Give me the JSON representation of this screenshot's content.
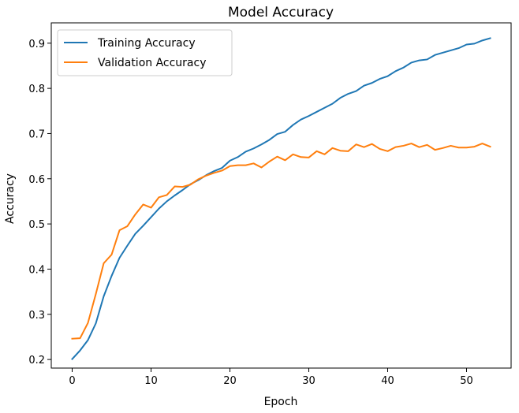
{
  "chart_data": {
    "type": "line",
    "title": "Model Accuracy",
    "xlabel": "Epoch",
    "ylabel": "Accuracy",
    "xlim": [
      -2.65,
      55.65
    ],
    "ylim": [
      0.181,
      0.945
    ],
    "xticks": [
      0,
      10,
      20,
      30,
      40,
      50
    ],
    "yticks": [
      0.2,
      0.3,
      0.4,
      0.5,
      0.6,
      0.7,
      0.8,
      0.9
    ],
    "grid": false,
    "legend_position": "top-left",
    "x": [
      0,
      1,
      2,
      3,
      4,
      5,
      6,
      7,
      8,
      9,
      10,
      11,
      12,
      13,
      14,
      15,
      16,
      17,
      18,
      19,
      20,
      21,
      22,
      23,
      24,
      25,
      26,
      27,
      28,
      29,
      30,
      31,
      32,
      33,
      34,
      35,
      36,
      37,
      38,
      39,
      40,
      41,
      42,
      43,
      44,
      45,
      46,
      47,
      48,
      49,
      50,
      51,
      52,
      53
    ],
    "series": [
      {
        "name": "Training Accuracy",
        "color": "#1f77b4",
        "values": [
          0.201,
          0.22,
          0.243,
          0.28,
          0.34,
          0.385,
          0.425,
          0.452,
          0.478,
          0.496,
          0.515,
          0.534,
          0.55,
          0.563,
          0.575,
          0.588,
          0.597,
          0.608,
          0.617,
          0.624,
          0.64,
          0.648,
          0.66,
          0.667,
          0.676,
          0.686,
          0.699,
          0.704,
          0.719,
          0.731,
          0.739,
          0.748,
          0.757,
          0.766,
          0.779,
          0.788,
          0.794,
          0.806,
          0.812,
          0.821,
          0.827,
          0.838,
          0.846,
          0.857,
          0.862,
          0.864,
          0.874,
          0.879,
          0.884,
          0.889,
          0.897,
          0.899,
          0.906,
          0.911
        ]
      },
      {
        "name": "Validation Accuracy",
        "color": "#ff7f0e",
        "values": [
          0.246,
          0.247,
          0.281,
          0.345,
          0.413,
          0.432,
          0.486,
          0.495,
          0.521,
          0.543,
          0.536,
          0.559,
          0.564,
          0.583,
          0.582,
          0.587,
          0.599,
          0.607,
          0.613,
          0.618,
          0.628,
          0.63,
          0.63,
          0.634,
          0.625,
          0.638,
          0.649,
          0.641,
          0.654,
          0.648,
          0.647,
          0.661,
          0.654,
          0.668,
          0.662,
          0.661,
          0.676,
          0.67,
          0.677,
          0.666,
          0.661,
          0.67,
          0.673,
          0.678,
          0.67,
          0.675,
          0.664,
          0.668,
          0.673,
          0.669,
          0.669,
          0.671,
          0.678,
          0.671
        ]
      }
    ]
  }
}
